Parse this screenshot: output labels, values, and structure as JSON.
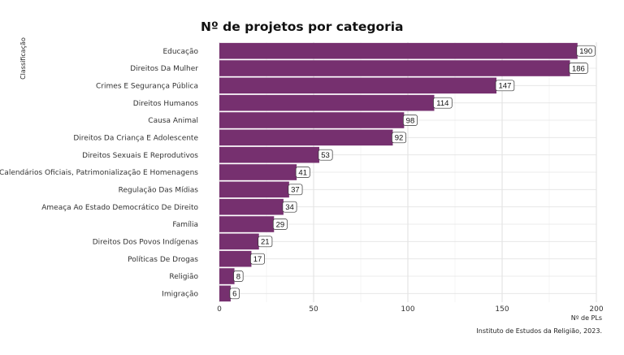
{
  "chart_data": {
    "type": "bar",
    "orientation": "horizontal",
    "title": "Nº de projetos por categoria",
    "xlabel": "Nº de PLs",
    "ylabel": "Classificação",
    "caption": "Instituto de Estudos da Religião, 2023.",
    "categories": [
      "Educação",
      "Direitos Da Mulher",
      "Crimes E Segurança Pública",
      "Direitos Humanos",
      "Causa Animal",
      "Direitos Da Criança E Adolescente",
      "Direitos Sexuais E Reprodutivos",
      "Calendários Oficiais, Patrimonialização E Homenagens",
      "Regulação Das Mídias",
      "Ameaça Ao Estado Democrático De Direito",
      "Família",
      "Direitos Dos Povos Indígenas",
      "Políticas De Drogas",
      "Religião",
      "Imigração"
    ],
    "values": [
      190,
      186,
      147,
      114,
      98,
      92,
      53,
      41,
      37,
      34,
      29,
      21,
      17,
      8,
      6
    ],
    "xlim": [
      0,
      200
    ],
    "xticks": [
      0,
      50,
      100,
      150,
      200
    ],
    "bar_color": "#76306f",
    "grid": true,
    "legend": "none"
  }
}
